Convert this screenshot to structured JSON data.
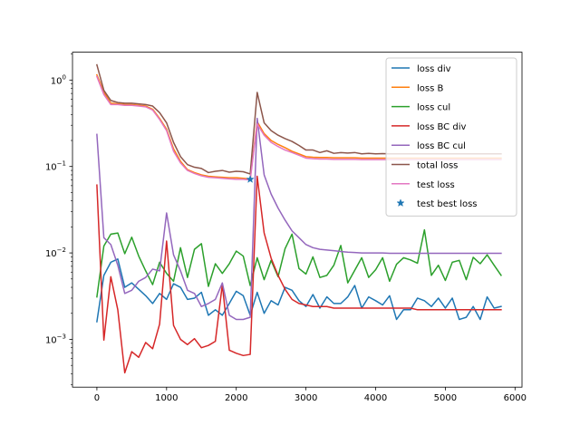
{
  "chart_data": {
    "type": "line",
    "yscale": "log",
    "xlim": [
      -350,
      6100
    ],
    "ylim": [
      0.00028,
      2.1
    ],
    "xticks": [
      0,
      1000,
      2000,
      3000,
      4000,
      5000,
      6000
    ],
    "xtick_labels": [
      "0",
      "1000",
      "2000",
      "3000",
      "4000",
      "5000",
      "6000"
    ],
    "yticks": [
      0.001,
      0.01,
      0.1,
      1
    ],
    "ytick_labels": [
      "10",
      "10",
      "10",
      "10"
    ],
    "ytick_exponents": [
      "−3",
      "−2",
      "−1",
      "0"
    ],
    "grid": false,
    "legend_position": "top-right",
    "x": [
      0,
      100,
      200,
      300,
      400,
      500,
      600,
      700,
      800,
      900,
      1000,
      1100,
      1200,
      1300,
      1400,
      1500,
      1600,
      1700,
      1800,
      1900,
      2000,
      2100,
      2200,
      2300,
      2400,
      2500,
      2600,
      2700,
      2800,
      2900,
      3000,
      3100,
      3200,
      3300,
      3400,
      3500,
      3600,
      3700,
      3800,
      3900,
      4000,
      4100,
      4200,
      4300,
      4400,
      4500,
      4600,
      4700,
      4800,
      4900,
      5000,
      5100,
      5200,
      5300,
      5400,
      5500,
      5600,
      5700,
      5800
    ],
    "series": [
      {
        "name": "loss div",
        "color": "#1f77b4",
        "values": [
          0.0016,
          0.0055,
          0.0078,
          0.0085,
          0.004,
          0.0045,
          0.0038,
          0.0032,
          0.0026,
          0.0034,
          0.0029,
          0.0044,
          0.004,
          0.0029,
          0.003,
          0.0035,
          0.0019,
          0.0022,
          0.0019,
          0.0026,
          0.0036,
          0.0032,
          0.0019,
          0.0035,
          0.002,
          0.0028,
          0.0025,
          0.004,
          0.0037,
          0.0028,
          0.0024,
          0.0033,
          0.0023,
          0.0031,
          0.0026,
          0.0026,
          0.0031,
          0.0042,
          0.0023,
          0.0031,
          0.0028,
          0.0025,
          0.0032,
          0.0017,
          0.0022,
          0.0022,
          0.003,
          0.0028,
          0.0024,
          0.003,
          0.0023,
          0.003,
          0.0017,
          0.0018,
          0.0024,
          0.0017,
          0.0031,
          0.0023,
          0.0024
        ]
      },
      {
        "name": "loss B",
        "color": "#ff7f0e",
        "values": [
          1.15,
          0.72,
          0.54,
          0.53,
          0.52,
          0.52,
          0.51,
          0.5,
          0.46,
          0.36,
          0.27,
          0.16,
          0.115,
          0.092,
          0.085,
          0.08,
          0.077,
          0.076,
          0.075,
          0.074,
          0.074,
          0.073,
          0.072,
          0.33,
          0.24,
          0.2,
          0.18,
          0.165,
          0.15,
          0.14,
          0.13,
          0.128,
          0.127,
          0.127,
          0.126,
          0.126,
          0.126,
          0.126,
          0.125,
          0.125,
          0.125,
          0.125,
          0.125,
          0.125,
          0.125,
          0.125,
          0.125,
          0.125,
          0.125,
          0.125,
          0.125,
          0.125,
          0.125,
          0.125,
          0.125,
          0.125,
          0.125,
          0.125,
          0.125
        ]
      },
      {
        "name": "loss cul",
        "color": "#2ca02c",
        "values": [
          0.0031,
          0.012,
          0.0165,
          0.017,
          0.0098,
          0.0152,
          0.0092,
          0.0062,
          0.0043,
          0.0078,
          0.0058,
          0.0047,
          0.0115,
          0.0052,
          0.011,
          0.0128,
          0.0041,
          0.0075,
          0.0058,
          0.0075,
          0.0105,
          0.0092,
          0.0042,
          0.0088,
          0.0049,
          0.0082,
          0.0053,
          0.0112,
          0.0165,
          0.0066,
          0.0057,
          0.009,
          0.0052,
          0.0055,
          0.0072,
          0.0122,
          0.0045,
          0.0063,
          0.0088,
          0.0052,
          0.0064,
          0.0088,
          0.0047,
          0.0074,
          0.0088,
          0.0083,
          0.0076,
          0.0185,
          0.0055,
          0.0072,
          0.0048,
          0.0078,
          0.0082,
          0.0049,
          0.0089,
          0.0075,
          0.0095,
          0.0072,
          0.0055
        ]
      },
      {
        "name": "loss BC div",
        "color": "#d62728",
        "values": [
          0.061,
          0.00098,
          0.0053,
          0.0022,
          0.00041,
          0.00072,
          0.00062,
          0.00092,
          0.00078,
          0.0015,
          0.0137,
          0.00145,
          0.001,
          0.00087,
          0.00102,
          0.0008,
          0.00085,
          0.00095,
          0.0043,
          0.00075,
          0.00069,
          0.00065,
          0.00067,
          0.077,
          0.017,
          0.0087,
          0.0055,
          0.0038,
          0.0029,
          0.0026,
          0.0025,
          0.0024,
          0.0024,
          0.0024,
          0.0023,
          0.0023,
          0.0023,
          0.0023,
          0.0023,
          0.0023,
          0.0023,
          0.0023,
          0.0023,
          0.0023,
          0.0023,
          0.0023,
          0.0022,
          0.0022,
          0.0022,
          0.0022,
          0.0022,
          0.0022,
          0.0022,
          0.0022,
          0.0022,
          0.0022,
          0.0022,
          0.0022,
          0.0022
        ]
      },
      {
        "name": "loss BC cul",
        "color": "#9467bd",
        "values": [
          0.235,
          0.015,
          0.0125,
          0.0072,
          0.0034,
          0.0037,
          0.0047,
          0.0052,
          0.0065,
          0.0062,
          0.029,
          0.0095,
          0.0062,
          0.0037,
          0.0034,
          0.0024,
          0.0026,
          0.0029,
          0.0045,
          0.0019,
          0.0017,
          0.0017,
          0.0018,
          0.36,
          0.08,
          0.048,
          0.033,
          0.024,
          0.018,
          0.015,
          0.0125,
          0.0115,
          0.011,
          0.0108,
          0.0106,
          0.0104,
          0.0102,
          0.0101,
          0.01,
          0.01,
          0.01,
          0.01,
          0.0099,
          0.0099,
          0.0099,
          0.0099,
          0.0099,
          0.0099,
          0.0099,
          0.0099,
          0.0099,
          0.0099,
          0.0099,
          0.0099,
          0.0099,
          0.0099,
          0.0099,
          0.0099,
          0.0099
        ]
      },
      {
        "name": "total loss",
        "color": "#8c564b",
        "values": [
          1.5,
          0.76,
          0.58,
          0.55,
          0.54,
          0.54,
          0.53,
          0.52,
          0.5,
          0.42,
          0.32,
          0.19,
          0.13,
          0.105,
          0.098,
          0.095,
          0.085,
          0.088,
          0.09,
          0.086,
          0.088,
          0.087,
          0.082,
          0.72,
          0.32,
          0.26,
          0.23,
          0.21,
          0.195,
          0.175,
          0.155,
          0.155,
          0.145,
          0.152,
          0.142,
          0.145,
          0.143,
          0.145,
          0.14,
          0.142,
          0.14,
          0.141,
          0.14,
          0.14,
          0.14,
          0.14,
          0.14,
          0.14,
          0.14,
          0.14,
          0.14,
          0.14,
          0.14,
          0.14,
          0.14,
          0.14,
          0.14,
          0.14,
          0.14
        ]
      },
      {
        "name": "test loss",
        "color": "#e377c2",
        "values": [
          1.1,
          0.68,
          0.52,
          0.52,
          0.51,
          0.51,
          0.5,
          0.49,
          0.45,
          0.35,
          0.26,
          0.15,
          0.11,
          0.09,
          0.083,
          0.078,
          0.075,
          0.074,
          0.073,
          0.072,
          0.071,
          0.071,
          0.07,
          0.31,
          0.23,
          0.19,
          0.17,
          0.155,
          0.145,
          0.135,
          0.125,
          0.123,
          0.122,
          0.122,
          0.121,
          0.121,
          0.121,
          0.121,
          0.12,
          0.12,
          0.12,
          0.12,
          0.12,
          0.12,
          0.12,
          0.12,
          0.12,
          0.12,
          0.12,
          0.12,
          0.12,
          0.12,
          0.12,
          0.12,
          0.12,
          0.12,
          0.12,
          0.12,
          0.12
        ]
      }
    ],
    "markers": [
      {
        "name": "test best loss",
        "color": "#1f77b4",
        "x": 2200,
        "y": 0.071
      }
    ]
  }
}
